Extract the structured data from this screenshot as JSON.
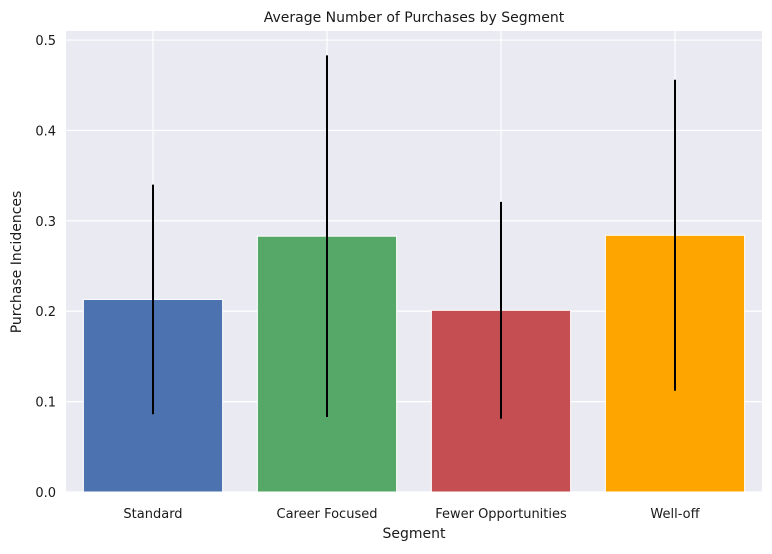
{
  "chart_data": {
    "type": "bar",
    "title": "Average Number of Purchases by Segment",
    "xlabel": "Segment",
    "ylabel": "Purchase Incidences",
    "categories": [
      "Standard",
      "Career Focused",
      "Fewer Opportunities",
      "Well-off"
    ],
    "values": [
      0.213,
      0.283,
      0.201,
      0.284
    ],
    "error": [
      0.127,
      0.2,
      0.12,
      0.172
    ],
    "colors": [
      "#4c72b0",
      "#55a868",
      "#c44e52",
      "#ffa500"
    ],
    "ylim": [
      0,
      0.51
    ],
    "yticks": [
      0.0,
      0.1,
      0.2,
      0.3,
      0.4,
      0.5
    ],
    "ytick_labels": [
      "0.0",
      "0.1",
      "0.2",
      "0.3",
      "0.4",
      "0.5"
    ],
    "grid": true,
    "background": "#eaeaf2",
    "errorbar_color": "#000000"
  }
}
